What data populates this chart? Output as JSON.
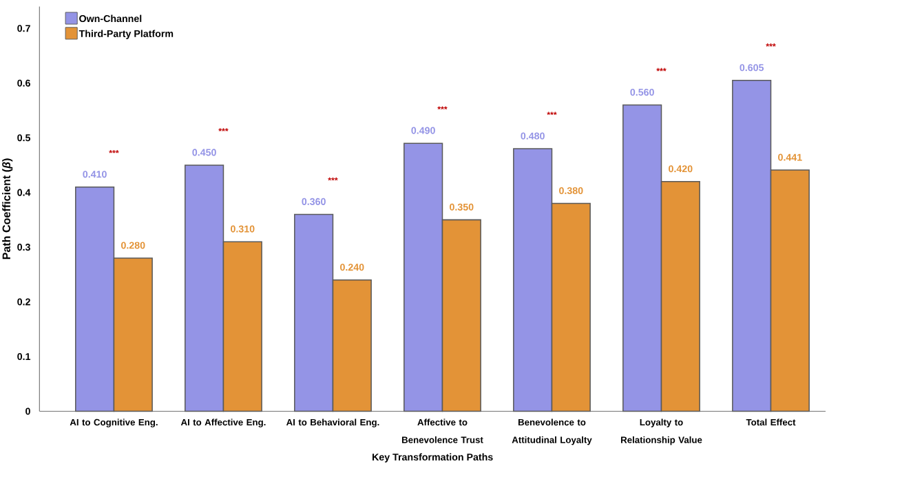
{
  "chart_data": {
    "type": "bar",
    "xlabel": "Key Transformation Paths",
    "ylabel": "Path Coefficient (*β*)",
    "categories": [
      "AI to Cognitive Eng.",
      "AI to Affective Eng.",
      "AI to Behavioral Eng.",
      "Affective to Benevolence Trust",
      "Benevolence to Attitudinal Loyalty",
      "Loyalty to Relationship Value",
      "Total Effect"
    ],
    "series": [
      {
        "name": "Own-Channel",
        "color": "#9494e6",
        "values": [
          0.41,
          0.45,
          0.36,
          0.49,
          0.48,
          0.56,
          0.605
        ],
        "value_labels": [
          "0.410",
          "0.450",
          "0.360",
          "0.490",
          "0.480",
          "0.560",
          "0.605"
        ]
      },
      {
        "name": "Third-Party Platform",
        "color": "#e39337",
        "values": [
          0.28,
          0.31,
          0.24,
          0.35,
          0.38,
          0.42,
          0.441
        ],
        "value_labels": [
          "0.280",
          "0.310",
          "0.240",
          "0.350",
          "0.380",
          "0.420",
          "0.441"
        ]
      }
    ],
    "ylim": [
      0,
      0.74
    ],
    "yticks": [
      0,
      0.1,
      0.2,
      0.3,
      0.4,
      0.5,
      0.6,
      0.7
    ],
    "legend": "top left",
    "annotations": [
      "***",
      "***",
      "***",
      "***",
      "***",
      "***",
      "***"
    ]
  }
}
